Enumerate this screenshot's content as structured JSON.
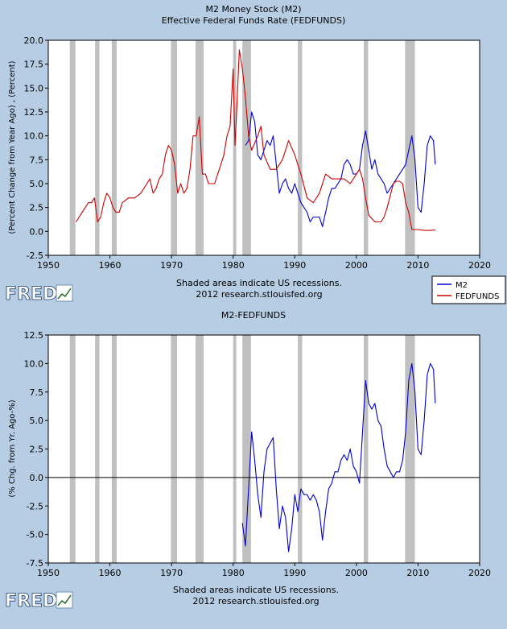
{
  "colors": {
    "frame_bg": "#b6cde4",
    "plot_bg": "#ffffff",
    "recession": "#c0c0c0",
    "m2": "#0000cc",
    "fedfunds": "#cc0000",
    "spread": "#0000cc",
    "zero_line": "#000000"
  },
  "branding": {
    "logo_text": "FRED",
    "footer_line1": "Shaded areas indicate US recessions.",
    "footer_line2": "2012 research.stlouisfed.org"
  },
  "chart_data": [
    {
      "type": "line",
      "title": "M2 Money Stock (M2)",
      "subtitle": "Effective Federal Funds Rate (FEDFUNDS)",
      "xlabel": "",
      "ylabel": "(Percent Change from Year Ago) , (Percent)",
      "xlim": [
        1950,
        2020
      ],
      "ylim": [
        -2.5,
        20.0
      ],
      "x_ticks": [
        1950,
        1960,
        1970,
        1980,
        1990,
        2000,
        2010,
        2020
      ],
      "y_ticks": [
        -2.5,
        0.0,
        2.5,
        5.0,
        7.5,
        10.0,
        12.5,
        15.0,
        17.5,
        20.0
      ],
      "y_tick_labels": [
        "-2.5",
        "0.0",
        "2.5",
        "5.0",
        "7.5",
        "10.0",
        "12.5",
        "15.0",
        "17.5",
        "20.0"
      ],
      "grid": false,
      "legend": {
        "position": "bottom-right",
        "entries": [
          "M2",
          "FEDFUNDS"
        ]
      },
      "recessions": [
        [
          1953.5,
          1954.4
        ],
        [
          1957.6,
          1958.3
        ],
        [
          1960.3,
          1961.1
        ],
        [
          1969.9,
          1970.9
        ],
        [
          1973.9,
          1975.2
        ],
        [
          1980.0,
          1980.5
        ],
        [
          1981.5,
          1982.9
        ],
        [
          1990.5,
          1991.2
        ],
        [
          2001.2,
          2001.9
        ],
        [
          2007.9,
          2009.5
        ]
      ],
      "series": [
        {
          "name": "M2",
          "x": [
            1982.0,
            1982.5,
            1983.0,
            1983.5,
            1984.0,
            1984.5,
            1985.0,
            1985.5,
            1986.0,
            1986.5,
            1987.0,
            1987.5,
            1988.0,
            1988.5,
            1989.0,
            1989.5,
            1990.0,
            1990.5,
            1991.0,
            1991.5,
            1992.0,
            1992.5,
            1993.0,
            1993.5,
            1994.0,
            1994.5,
            1995.0,
            1995.5,
            1996.0,
            1996.5,
            1997.0,
            1997.5,
            1998.0,
            1998.5,
            1999.0,
            1999.5,
            2000.0,
            2000.5,
            2001.0,
            2001.5,
            2002.0,
            2002.5,
            2003.0,
            2003.5,
            2004.0,
            2004.5,
            2005.0,
            2005.5,
            2006.0,
            2006.5,
            2007.0,
            2007.5,
            2008.0,
            2008.5,
            2009.0,
            2009.5,
            2010.0,
            2010.5,
            2011.0,
            2011.5,
            2012.0,
            2012.5,
            2012.8
          ],
          "values": [
            9.0,
            9.5,
            12.5,
            11.5,
            8.0,
            7.5,
            8.5,
            9.5,
            9.0,
            10.0,
            7.0,
            4.0,
            5.0,
            5.5,
            4.5,
            4.0,
            5.0,
            4.0,
            3.0,
            2.5,
            2.0,
            1.0,
            1.5,
            1.5,
            1.5,
            0.5,
            2.0,
            3.5,
            4.5,
            4.5,
            5.0,
            5.5,
            7.0,
            7.5,
            7.0,
            6.0,
            6.0,
            6.5,
            9.0,
            10.5,
            8.5,
            6.5,
            7.5,
            6.0,
            5.5,
            5.0,
            4.0,
            4.5,
            5.0,
            5.5,
            6.0,
            6.5,
            7.0,
            8.5,
            10.0,
            7.5,
            2.5,
            2.0,
            5.0,
            9.0,
            10.0,
            9.5,
            7.0
          ]
        },
        {
          "name": "FEDFUNDS",
          "x": [
            1954.5,
            1955.0,
            1955.5,
            1956.0,
            1956.5,
            1957.0,
            1957.5,
            1958.0,
            1958.5,
            1959.0,
            1959.5,
            1960.0,
            1960.5,
            1961.0,
            1961.5,
            1962.0,
            1963.0,
            1964.0,
            1965.0,
            1966.0,
            1966.5,
            1967.0,
            1967.5,
            1968.0,
            1968.5,
            1969.0,
            1969.5,
            1970.0,
            1970.5,
            1971.0,
            1971.5,
            1972.0,
            1972.5,
            1973.0,
            1973.5,
            1974.0,
            1974.5,
            1975.0,
            1975.5,
            1976.0,
            1976.5,
            1977.0,
            1977.5,
            1978.0,
            1978.5,
            1979.0,
            1979.5,
            1980.0,
            1980.3,
            1980.6,
            1981.0,
            1981.5,
            1982.0,
            1982.5,
            1983.0,
            1984.0,
            1984.5,
            1985.0,
            1986.0,
            1987.0,
            1988.0,
            1989.0,
            1990.0,
            1991.0,
            1992.0,
            1993.0,
            1994.0,
            1995.0,
            1996.0,
            1997.0,
            1998.0,
            1999.0,
            2000.0,
            2000.5,
            2001.0,
            2001.5,
            2002.0,
            2003.0,
            2004.0,
            2004.5,
            2005.0,
            2006.0,
            2006.5,
            2007.0,
            2007.5,
            2008.0,
            2008.5,
            2009.0,
            2010.0,
            2011.0,
            2012.0,
            2012.8
          ],
          "values": [
            1.0,
            1.5,
            2.0,
            2.5,
            3.0,
            3.0,
            3.5,
            1.0,
            1.5,
            3.0,
            4.0,
            3.5,
            2.5,
            2.0,
            2.0,
            3.0,
            3.5,
            3.5,
            4.0,
            5.0,
            5.5,
            4.0,
            4.5,
            5.5,
            6.0,
            8.0,
            9.0,
            8.5,
            7.0,
            4.0,
            5.0,
            4.0,
            4.5,
            6.5,
            10.0,
            10.0,
            12.0,
            6.0,
            6.0,
            5.0,
            5.0,
            5.0,
            6.0,
            7.0,
            8.0,
            10.0,
            11.0,
            17.0,
            9.0,
            13.0,
            19.0,
            17.0,
            14.0,
            10.0,
            8.5,
            10.0,
            11.0,
            8.0,
            6.5,
            6.5,
            7.5,
            9.5,
            8.0,
            6.0,
            3.5,
            3.0,
            4.0,
            6.0,
            5.5,
            5.5,
            5.5,
            5.0,
            6.0,
            6.5,
            5.5,
            3.5,
            1.7,
            1.0,
            1.0,
            1.5,
            2.5,
            5.0,
            5.25,
            5.25,
            5.0,
            3.0,
            2.0,
            0.2,
            0.2,
            0.1,
            0.1,
            0.15
          ]
        }
      ]
    },
    {
      "type": "line",
      "title": "M2-FEDFUNDS",
      "xlabel": "",
      "ylabel": "(% Chg. from Yr. Ago-%)",
      "xlim": [
        1950,
        2020
      ],
      "ylim": [
        -7.5,
        12.5
      ],
      "x_ticks": [
        1950,
        1960,
        1970,
        1980,
        1990,
        2000,
        2010,
        2020
      ],
      "y_ticks": [
        -7.5,
        -5.0,
        -2.5,
        0.0,
        2.5,
        5.0,
        7.5,
        10.0,
        12.5
      ],
      "y_tick_labels": [
        "-7.5",
        "-5.0",
        "-2.5",
        "0.0",
        "2.5",
        "5.0",
        "7.5",
        "10.0",
        "12.5"
      ],
      "grid": false,
      "zero_line": true,
      "recessions": [
        [
          1953.5,
          1954.4
        ],
        [
          1957.6,
          1958.3
        ],
        [
          1960.3,
          1961.1
        ],
        [
          1969.9,
          1970.9
        ],
        [
          1973.9,
          1975.2
        ],
        [
          1980.0,
          1980.5
        ],
        [
          1981.5,
          1982.9
        ],
        [
          1990.5,
          1991.2
        ],
        [
          2001.2,
          2001.9
        ],
        [
          2007.9,
          2009.5
        ]
      ],
      "series": [
        {
          "name": "M2-FEDFUNDS",
          "x": [
            1981.5,
            1982.0,
            1982.5,
            1983.0,
            1983.5,
            1984.0,
            1984.5,
            1985.0,
            1985.5,
            1986.0,
            1986.5,
            1987.0,
            1987.5,
            1988.0,
            1988.5,
            1989.0,
            1989.5,
            1990.0,
            1990.5,
            1991.0,
            1991.5,
            1992.0,
            1992.5,
            1993.0,
            1993.5,
            1994.0,
            1994.5,
            1995.0,
            1995.5,
            1996.0,
            1996.5,
            1997.0,
            1997.5,
            1998.0,
            1998.5,
            1999.0,
            1999.5,
            2000.0,
            2000.5,
            2001.0,
            2001.5,
            2002.0,
            2002.5,
            2003.0,
            2003.5,
            2004.0,
            2004.5,
            2005.0,
            2005.5,
            2006.0,
            2006.5,
            2007.0,
            2007.5,
            2008.0,
            2008.5,
            2009.0,
            2009.5,
            2010.0,
            2010.5,
            2011.0,
            2011.5,
            2012.0,
            2012.5,
            2012.8
          ],
          "values": [
            -4.0,
            -6.0,
            -1.0,
            4.0,
            1.5,
            -1.5,
            -3.5,
            0.5,
            2.5,
            3.0,
            3.5,
            -1.0,
            -4.5,
            -2.5,
            -3.5,
            -6.5,
            -4.5,
            -1.5,
            -3.0,
            -1.0,
            -1.5,
            -1.5,
            -2.0,
            -1.5,
            -2.0,
            -3.0,
            -5.5,
            -3.0,
            -1.0,
            -0.5,
            0.5,
            0.5,
            1.5,
            2.0,
            1.5,
            2.5,
            1.0,
            0.5,
            -0.5,
            4.0,
            8.5,
            6.5,
            6.0,
            6.5,
            5.0,
            4.5,
            2.5,
            1.0,
            0.5,
            0.0,
            0.5,
            0.5,
            1.5,
            4.0,
            8.5,
            10.0,
            7.5,
            2.5,
            2.0,
            5.0,
            9.0,
            10.0,
            9.5,
            6.5
          ]
        }
      ]
    }
  ]
}
